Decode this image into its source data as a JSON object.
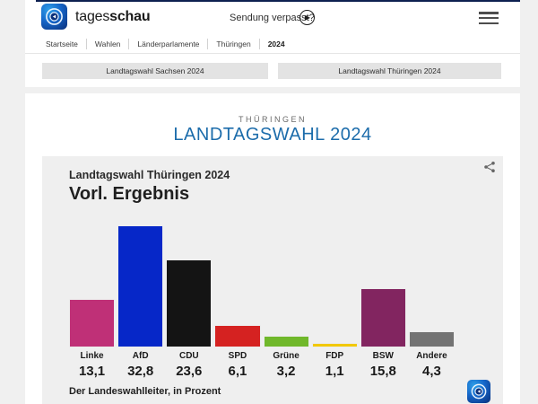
{
  "header": {
    "brand_tages": "tages",
    "brand_schau": "schau",
    "sendung_verpasst": "Sendung verpasst?",
    "breadcrumb": [
      "Startseite",
      "Wahlen",
      "Länderparlamente",
      "Thüringen",
      "2024"
    ]
  },
  "tabs": {
    "sachsen": "Landtagswahl Sachsen 2024",
    "thueringen": "Landtagswahl Thüringen 2024"
  },
  "main": {
    "kicker": "THÜRINGEN",
    "heading": "LANDTAGSWAHL 2024",
    "heading_color": "#1c6cab"
  },
  "chart": {
    "title": "Landtagswahl Thüringen 2024",
    "subtitle": "Vorl. Ergebnis",
    "source": "Der Landeswahlleiter, in Prozent"
  },
  "chart_data": {
    "type": "bar",
    "title": "Landtagswahl Thüringen 2024",
    "subtitle": "Vorl. Ergebnis",
    "categories": [
      "Linke",
      "AfD",
      "CDU",
      "SPD",
      "Grüne",
      "FDP",
      "BSW",
      "Andere"
    ],
    "values": [
      13.1,
      32.8,
      23.6,
      6.1,
      3.2,
      1.1,
      15.8,
      4.3
    ],
    "value_labels": [
      "13,1",
      "32,8",
      "23,6",
      "6,1",
      "3,2",
      "1,1",
      "15,8",
      "4,3"
    ],
    "colors": [
      "#bf3077",
      "#0627c8",
      "#141414",
      "#d52221",
      "#70b82b",
      "#f2c800",
      "#822560",
      "#737373"
    ],
    "unit": "Prozent",
    "ylim": [
      0,
      34
    ],
    "grid": false,
    "legend": "none",
    "source": "Der Landeswahlleiter, in Prozent"
  }
}
